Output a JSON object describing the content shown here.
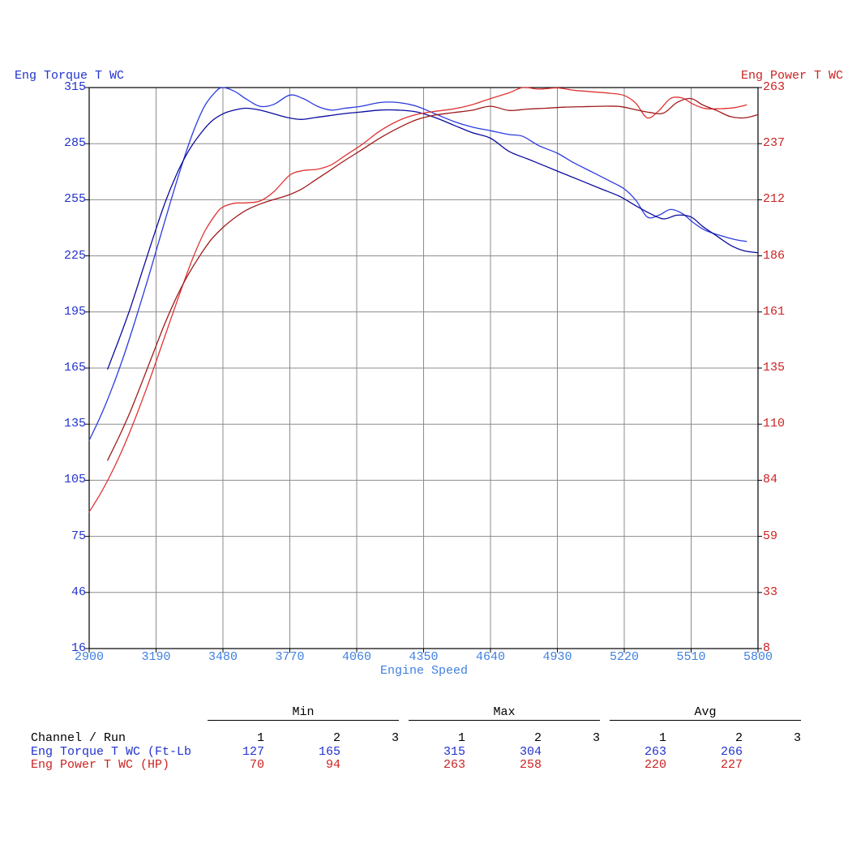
{
  "titles": {
    "left_axis": "Eng Torque T WC",
    "right_axis": "Eng Power T WC",
    "x_axis": "Engine Speed"
  },
  "colors": {
    "torque_text": "#2233cc",
    "power_text": "#cc2222",
    "x_axis_text": "#4080e0",
    "grid": "#8c8c8c",
    "plot_border": "#000000",
    "table_text": "#000000",
    "torque_run1": "#2b3bdf",
    "torque_run2": "#0a0a9e",
    "power_run1": "#e03333",
    "power_run2": "#a01a1a"
  },
  "axes": {
    "left": {
      "ticks": [
        "315",
        "285",
        "255",
        "225",
        "195",
        "165",
        "135",
        "105",
        "75",
        "46",
        "16"
      ]
    },
    "right": {
      "ticks": [
        "263",
        "237",
        "212",
        "186",
        "161",
        "135",
        "110",
        "84",
        "59",
        "33",
        "8"
      ]
    },
    "x": {
      "ticks": [
        "2900",
        "3190",
        "3480",
        "3770",
        "4060",
        "4350",
        "4640",
        "4930",
        "5220",
        "5510",
        "5800"
      ]
    }
  },
  "chart_data": {
    "type": "line",
    "x_axis_label": "Engine Speed",
    "x_range": [
      2900,
      5800
    ],
    "left_axis_label": "Eng Torque T WC",
    "left_range": [
      16,
      315
    ],
    "right_axis_label": "Eng Power T WC",
    "right_range": [
      8,
      263
    ],
    "grid": true,
    "series": [
      {
        "name": "Eng Torque T WC run 1",
        "unit": "Ft-Lb",
        "axis": "left",
        "color_key": "torque_run1",
        "points": [
          [
            2900,
            127
          ],
          [
            2950,
            140
          ],
          [
            3000,
            155
          ],
          [
            3050,
            172
          ],
          [
            3100,
            191
          ],
          [
            3150,
            211
          ],
          [
            3200,
            232
          ],
          [
            3250,
            253
          ],
          [
            3300,
            273
          ],
          [
            3350,
            291
          ],
          [
            3400,
            305
          ],
          [
            3450,
            313
          ],
          [
            3480,
            315
          ],
          [
            3530,
            313
          ],
          [
            3580,
            309
          ],
          [
            3640,
            305
          ],
          [
            3700,
            306
          ],
          [
            3770,
            311
          ],
          [
            3830,
            309
          ],
          [
            3890,
            305
          ],
          [
            3950,
            303
          ],
          [
            4010,
            304
          ],
          [
            4080,
            305
          ],
          [
            4160,
            307
          ],
          [
            4240,
            307
          ],
          [
            4320,
            305
          ],
          [
            4400,
            301
          ],
          [
            4480,
            297
          ],
          [
            4560,
            294
          ],
          [
            4640,
            292
          ],
          [
            4720,
            290
          ],
          [
            4780,
            289
          ],
          [
            4850,
            284
          ],
          [
            4930,
            280
          ],
          [
            5000,
            275
          ],
          [
            5080,
            270
          ],
          [
            5160,
            265
          ],
          [
            5220,
            261
          ],
          [
            5270,
            255
          ],
          [
            5320,
            246
          ],
          [
            5370,
            247
          ],
          [
            5420,
            250
          ],
          [
            5470,
            248
          ],
          [
            5520,
            243
          ],
          [
            5570,
            239
          ],
          [
            5640,
            236
          ],
          [
            5700,
            234
          ],
          [
            5750,
            233
          ]
        ]
      },
      {
        "name": "Eng Torque T WC run 2",
        "unit": "Ft-Lb",
        "axis": "left",
        "color_key": "torque_run2",
        "points": [
          [
            2980,
            165
          ],
          [
            3030,
            181
          ],
          [
            3080,
            198
          ],
          [
            3130,
            217
          ],
          [
            3180,
            236
          ],
          [
            3230,
            254
          ],
          [
            3280,
            269
          ],
          [
            3330,
            281
          ],
          [
            3380,
            290
          ],
          [
            3430,
            297
          ],
          [
            3480,
            301
          ],
          [
            3530,
            303
          ],
          [
            3580,
            304
          ],
          [
            3640,
            303
          ],
          [
            3700,
            301
          ],
          [
            3760,
            299
          ],
          [
            3820,
            298
          ],
          [
            3880,
            299
          ],
          [
            3940,
            300
          ],
          [
            4000,
            301
          ],
          [
            4080,
            302
          ],
          [
            4160,
            303
          ],
          [
            4240,
            303
          ],
          [
            4320,
            302
          ],
          [
            4400,
            299
          ],
          [
            4480,
            295
          ],
          [
            4560,
            291
          ],
          [
            4640,
            288
          ],
          [
            4720,
            281
          ],
          [
            4800,
            277
          ],
          [
            4880,
            273
          ],
          [
            4960,
            269
          ],
          [
            5040,
            265
          ],
          [
            5120,
            261
          ],
          [
            5200,
            257
          ],
          [
            5270,
            252
          ],
          [
            5330,
            248
          ],
          [
            5390,
            245
          ],
          [
            5450,
            247
          ],
          [
            5510,
            246
          ],
          [
            5560,
            241
          ],
          [
            5620,
            236
          ],
          [
            5680,
            231
          ],
          [
            5740,
            228
          ],
          [
            5800,
            227
          ]
        ]
      },
      {
        "name": "Eng Power T WC run 1",
        "unit": "HP",
        "axis": "right",
        "color_key": "power_run1",
        "points": [
          [
            2900,
            70.1
          ],
          [
            2950,
            78.6
          ],
          [
            3000,
            88.5
          ],
          [
            3050,
            99.9
          ],
          [
            3100,
            112.7
          ],
          [
            3150,
            126.6
          ],
          [
            3200,
            141.4
          ],
          [
            3250,
            156.6
          ],
          [
            3300,
            171.5
          ],
          [
            3350,
            185.6
          ],
          [
            3400,
            197.4
          ],
          [
            3450,
            205.6
          ],
          [
            3480,
            208.7
          ],
          [
            3530,
            210.4
          ],
          [
            3580,
            210.6
          ],
          [
            3640,
            211.4
          ],
          [
            3700,
            215.6
          ],
          [
            3770,
            223.2
          ],
          [
            3830,
            225.3
          ],
          [
            3890,
            225.9
          ],
          [
            3950,
            227.9
          ],
          [
            4010,
            232.1
          ],
          [
            4080,
            236.9
          ],
          [
            4160,
            243.2
          ],
          [
            4240,
            247.9
          ],
          [
            4320,
            250.8
          ],
          [
            4400,
            252.2
          ],
          [
            4480,
            253.3
          ],
          [
            4560,
            255.2
          ],
          [
            4640,
            258.0
          ],
          [
            4720,
            260.6
          ],
          [
            4780,
            263.0
          ],
          [
            4850,
            262.3
          ],
          [
            4930,
            262.8
          ],
          [
            5000,
            261.8
          ],
          [
            5080,
            261.1
          ],
          [
            5160,
            260.4
          ],
          [
            5220,
            259.4
          ],
          [
            5270,
            255.9
          ],
          [
            5320,
            249.2
          ],
          [
            5370,
            252.5
          ],
          [
            5420,
            258.0
          ],
          [
            5470,
            258.3
          ],
          [
            5520,
            255.4
          ],
          [
            5570,
            253.5
          ],
          [
            5640,
            253.4
          ],
          [
            5700,
            253.9
          ],
          [
            5750,
            255.1
          ]
        ]
      },
      {
        "name": "Eng Power T WC run 2",
        "unit": "HP",
        "axis": "right",
        "color_key": "power_run2",
        "points": [
          [
            2980,
            93.6
          ],
          [
            3030,
            104.4
          ],
          [
            3080,
            116.1
          ],
          [
            3130,
            129.3
          ],
          [
            3180,
            142.9
          ],
          [
            3230,
            156.2
          ],
          [
            3280,
            168.0
          ],
          [
            3330,
            178.1
          ],
          [
            3380,
            186.6
          ],
          [
            3430,
            194.0
          ],
          [
            3480,
            199.4
          ],
          [
            3530,
            203.7
          ],
          [
            3580,
            207.2
          ],
          [
            3640,
            210.0
          ],
          [
            3700,
            212.1
          ],
          [
            3760,
            214.0
          ],
          [
            3820,
            216.8
          ],
          [
            3880,
            220.9
          ],
          [
            3940,
            225.1
          ],
          [
            4000,
            229.3
          ],
          [
            4080,
            234.6
          ],
          [
            4160,
            240.0
          ],
          [
            4240,
            244.6
          ],
          [
            4320,
            248.4
          ],
          [
            4400,
            250.5
          ],
          [
            4480,
            251.6
          ],
          [
            4560,
            252.7
          ],
          [
            4640,
            254.5
          ],
          [
            4720,
            252.6
          ],
          [
            4800,
            253.2
          ],
          [
            4880,
            253.6
          ],
          [
            4960,
            254.1
          ],
          [
            5040,
            254.3
          ],
          [
            5120,
            254.5
          ],
          [
            5200,
            254.4
          ],
          [
            5270,
            252.9
          ],
          [
            5330,
            251.7
          ],
          [
            5390,
            251.4
          ],
          [
            5450,
            256.3
          ],
          [
            5510,
            258.0
          ],
          [
            5560,
            255.1
          ],
          [
            5620,
            252.6
          ],
          [
            5680,
            249.8
          ],
          [
            5740,
            249.2
          ],
          [
            5800,
            250.7
          ]
        ]
      }
    ]
  },
  "table": {
    "group_headers": [
      "Min",
      "Max",
      "Avg"
    ],
    "run_headers": [
      "1",
      "2",
      "3",
      "1",
      "2",
      "3",
      "1",
      "2",
      "3"
    ],
    "row_header": "Channel / Run",
    "rows": [
      {
        "label": "Eng Torque T WC (Ft-Lb",
        "color_key": "torque_text",
        "values": [
          "127",
          "165",
          "",
          "315",
          "304",
          "",
          "263",
          "266",
          ""
        ]
      },
      {
        "label": "Eng Power T WC (HP)",
        "color_key": "power_text",
        "values": [
          "70",
          "94",
          "",
          "263",
          "258",
          "",
          "220",
          "227",
          ""
        ]
      }
    ]
  }
}
